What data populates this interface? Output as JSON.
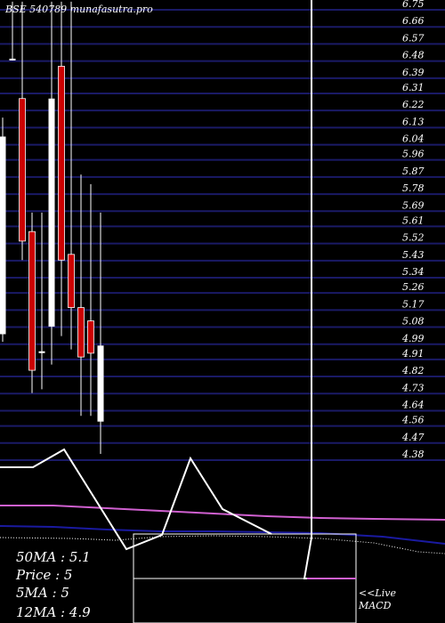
{
  "watermark": "BSE 540789 munafasutra.pro",
  "indicators": {
    "ma50": "50MA : 5.1",
    "price": "Price  : 5",
    "ma5": "5MA : 5",
    "ma12": "12MA : 4.9"
  },
  "live_label": "<<Live",
  "macd_label": "MACD",
  "colors": {
    "background": "#000000",
    "grid": "#1a1a66",
    "up": "#ffffff",
    "down": "#cc0000",
    "ma_pink": "#d060d0",
    "ma_blue": "#1a1aa0",
    "text": "#ffffff"
  },
  "chart_data": {
    "type": "candlestick",
    "y_ticks": [
      6.75,
      6.66,
      6.57,
      6.48,
      6.39,
      6.31,
      6.22,
      6.13,
      6.04,
      5.96,
      5.87,
      5.78,
      5.69,
      5.61,
      5.52,
      5.43,
      5.34,
      5.26,
      5.17,
      5.08,
      4.99,
      4.91,
      4.82,
      4.73,
      4.64,
      4.56,
      4.47,
      4.38
    ],
    "ylim": [
      4.38,
      6.75
    ],
    "candles": [
      {
        "open": 5.01,
        "close": 6.05,
        "high": 6.15,
        "low": 4.97
      },
      {
        "open": 6.46,
        "close": 6.46,
        "high": 6.76,
        "low": 6.45
      },
      {
        "open": 6.25,
        "close": 5.5,
        "high": 6.76,
        "low": 5.4
      },
      {
        "open": 5.55,
        "close": 4.82,
        "high": 5.65,
        "low": 4.7
      },
      {
        "open": 4.92,
        "close": 4.92,
        "high": 5.65,
        "low": 4.72
      },
      {
        "open": 5.05,
        "close": 6.25,
        "high": 6.76,
        "low": 4.85
      },
      {
        "open": 6.42,
        "close": 5.4,
        "high": 6.76,
        "low": 5.0
      },
      {
        "open": 5.43,
        "close": 5.15,
        "high": 6.76,
        "low": 4.93
      },
      {
        "open": 5.15,
        "close": 4.89,
        "high": 5.85,
        "low": 4.58
      },
      {
        "open": 5.08,
        "close": 4.91,
        "high": 5.8,
        "low": 4.58
      },
      {
        "open": 4.55,
        "close": 4.95,
        "high": 5.65,
        "low": 4.38
      }
    ]
  }
}
